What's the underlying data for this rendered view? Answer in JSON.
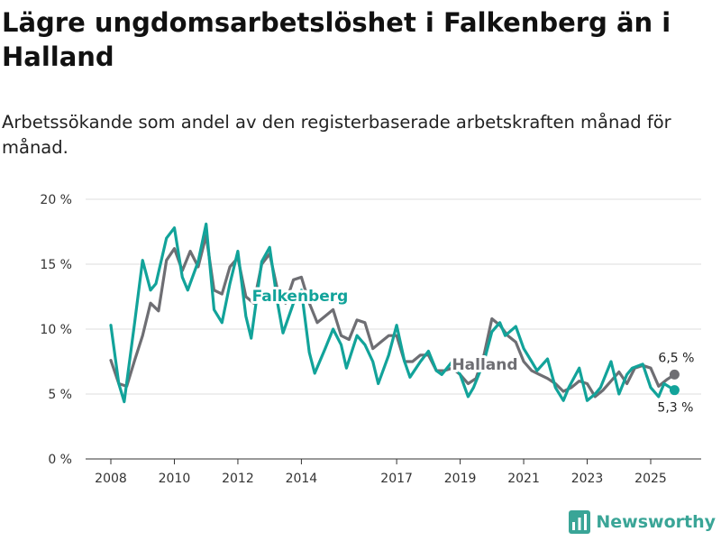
{
  "title": "Lägre ungdomsarbetslöshet i Falkenberg än i Halland",
  "subtitle": "Arbetssökande som andel av den registerbaserade arbetskraften månad för månad.",
  "brand": {
    "name": "Newsworthy",
    "icon": "bar-chart-logo-icon",
    "color": "#3aa597"
  },
  "colors": {
    "falkenberg": "#12a39a",
    "halland": "#6e6e73",
    "grid": "#dddddd",
    "axis": "#333333"
  },
  "chart_data": {
    "type": "line",
    "title": "Lägre ungdomsarbetslöshet i Falkenberg än i Halland",
    "xlabel": "",
    "ylabel": "",
    "ylim": [
      0,
      20
    ],
    "y_ticks": [
      0,
      5,
      10,
      15,
      20
    ],
    "y_tick_labels": [
      "0 %",
      "5 %",
      "10 %",
      "15 %",
      "20 %"
    ],
    "x_range": [
      2008,
      2025.83
    ],
    "x_ticks": [
      2008,
      2010,
      2012,
      2014,
      2017,
      2019,
      2021,
      2023,
      2025
    ],
    "x_tick_labels": [
      "2008",
      "2010",
      "2012",
      "2014",
      "2017",
      "2019",
      "2021",
      "2023",
      "2025"
    ],
    "x_tick_dates": [
      2008.0,
      2010.0,
      2012.0,
      2014.0,
      2017.0,
      2019.0,
      2021.0,
      2023.0,
      2025.0
    ],
    "series": [
      {
        "name": "Halland",
        "label": "Halland",
        "end_label": "6,5 %",
        "end_value": 6.5,
        "points": [
          [
            2008.0,
            7.6
          ],
          [
            2008.25,
            5.8
          ],
          [
            2008.5,
            5.6
          ],
          [
            2008.75,
            7.6
          ],
          [
            2009.0,
            9.5
          ],
          [
            2009.25,
            12.0
          ],
          [
            2009.5,
            11.4
          ],
          [
            2009.75,
            15.3
          ],
          [
            2010.0,
            16.2
          ],
          [
            2010.25,
            14.5
          ],
          [
            2010.5,
            16.0
          ],
          [
            2010.75,
            14.8
          ],
          [
            2011.0,
            17.2
          ],
          [
            2011.25,
            13.0
          ],
          [
            2011.5,
            12.7
          ],
          [
            2011.75,
            14.8
          ],
          [
            2012.0,
            15.5
          ],
          [
            2012.25,
            12.5
          ],
          [
            2012.5,
            12.0
          ],
          [
            2012.75,
            15.0
          ],
          [
            2013.0,
            15.8
          ],
          [
            2013.25,
            13.0
          ],
          [
            2013.5,
            12.0
          ],
          [
            2013.75,
            13.8
          ],
          [
            2014.0,
            14.0
          ],
          [
            2014.25,
            12.0
          ],
          [
            2014.5,
            10.5
          ],
          [
            2014.75,
            11.0
          ],
          [
            2015.0,
            11.5
          ],
          [
            2015.25,
            9.5
          ],
          [
            2015.5,
            9.2
          ],
          [
            2015.75,
            10.7
          ],
          [
            2016.0,
            10.5
          ],
          [
            2016.25,
            8.5
          ],
          [
            2016.5,
            9.0
          ],
          [
            2016.75,
            9.5
          ],
          [
            2017.0,
            9.5
          ],
          [
            2017.25,
            7.5
          ],
          [
            2017.5,
            7.5
          ],
          [
            2017.75,
            8.0
          ],
          [
            2018.0,
            8.0
          ],
          [
            2018.25,
            6.8
          ],
          [
            2018.5,
            6.8
          ],
          [
            2018.75,
            7.0
          ],
          [
            2019.0,
            6.5
          ],
          [
            2019.25,
            5.8
          ],
          [
            2019.5,
            6.2
          ],
          [
            2019.75,
            8.0
          ],
          [
            2020.0,
            10.8
          ],
          [
            2020.25,
            10.3
          ],
          [
            2020.5,
            9.5
          ],
          [
            2020.75,
            9.0
          ],
          [
            2021.0,
            7.5
          ],
          [
            2021.25,
            6.8
          ],
          [
            2021.5,
            6.5
          ],
          [
            2021.75,
            6.2
          ],
          [
            2022.0,
            5.8
          ],
          [
            2022.25,
            5.2
          ],
          [
            2022.5,
            5.5
          ],
          [
            2022.75,
            6.0
          ],
          [
            2023.0,
            5.8
          ],
          [
            2023.25,
            4.8
          ],
          [
            2023.5,
            5.3
          ],
          [
            2023.75,
            6.0
          ],
          [
            2024.0,
            6.7
          ],
          [
            2024.25,
            5.8
          ],
          [
            2024.5,
            7.0
          ],
          [
            2024.75,
            7.2
          ],
          [
            2025.0,
            7.0
          ],
          [
            2025.25,
            5.6
          ],
          [
            2025.5,
            6.1
          ],
          [
            2025.75,
            6.5
          ]
        ]
      },
      {
        "name": "Falkenberg",
        "label": "Falkenberg",
        "end_label": "5,3 %",
        "end_value": 5.3,
        "points": [
          [
            2008.0,
            10.3
          ],
          [
            2008.25,
            5.8
          ],
          [
            2008.42,
            4.4
          ],
          [
            2008.75,
            10.5
          ],
          [
            2009.0,
            15.3
          ],
          [
            2009.25,
            13.0
          ],
          [
            2009.42,
            13.5
          ],
          [
            2009.75,
            17.0
          ],
          [
            2010.0,
            17.8
          ],
          [
            2010.25,
            14.0
          ],
          [
            2010.42,
            13.0
          ],
          [
            2010.75,
            15.2
          ],
          [
            2011.0,
            18.1
          ],
          [
            2011.25,
            11.5
          ],
          [
            2011.5,
            10.5
          ],
          [
            2011.75,
            13.5
          ],
          [
            2012.0,
            16.0
          ],
          [
            2012.25,
            11.0
          ],
          [
            2012.42,
            9.3
          ],
          [
            2012.75,
            15.2
          ],
          [
            2013.0,
            16.3
          ],
          [
            2013.25,
            12.0
          ],
          [
            2013.42,
            9.7
          ],
          [
            2013.75,
            12.0
          ],
          [
            2014.0,
            13.0
          ],
          [
            2014.25,
            8.2
          ],
          [
            2014.42,
            6.6
          ],
          [
            2014.75,
            8.5
          ],
          [
            2015.0,
            10.0
          ],
          [
            2015.25,
            8.8
          ],
          [
            2015.42,
            7.0
          ],
          [
            2015.75,
            9.5
          ],
          [
            2016.0,
            8.8
          ],
          [
            2016.25,
            7.5
          ],
          [
            2016.42,
            5.8
          ],
          [
            2016.75,
            8.0
          ],
          [
            2017.0,
            10.3
          ],
          [
            2017.25,
            7.5
          ],
          [
            2017.42,
            6.3
          ],
          [
            2017.75,
            7.5
          ],
          [
            2018.0,
            8.3
          ],
          [
            2018.25,
            6.8
          ],
          [
            2018.42,
            6.5
          ],
          [
            2018.75,
            7.5
          ],
          [
            2019.0,
            6.5
          ],
          [
            2019.25,
            4.8
          ],
          [
            2019.42,
            5.5
          ],
          [
            2019.75,
            7.5
          ],
          [
            2020.0,
            9.8
          ],
          [
            2020.25,
            10.5
          ],
          [
            2020.42,
            9.5
          ],
          [
            2020.75,
            10.2
          ],
          [
            2021.0,
            8.5
          ],
          [
            2021.25,
            7.5
          ],
          [
            2021.42,
            6.8
          ],
          [
            2021.75,
            7.7
          ],
          [
            2022.0,
            5.5
          ],
          [
            2022.25,
            4.5
          ],
          [
            2022.42,
            5.5
          ],
          [
            2022.75,
            7.0
          ],
          [
            2023.0,
            4.5
          ],
          [
            2023.25,
            5.0
          ],
          [
            2023.42,
            5.5
          ],
          [
            2023.75,
            7.5
          ],
          [
            2024.0,
            5.0
          ],
          [
            2024.25,
            6.5
          ],
          [
            2024.42,
            7.0
          ],
          [
            2024.75,
            7.3
          ],
          [
            2025.0,
            5.5
          ],
          [
            2025.25,
            4.8
          ],
          [
            2025.42,
            5.8
          ],
          [
            2025.75,
            5.3
          ]
        ]
      }
    ]
  }
}
